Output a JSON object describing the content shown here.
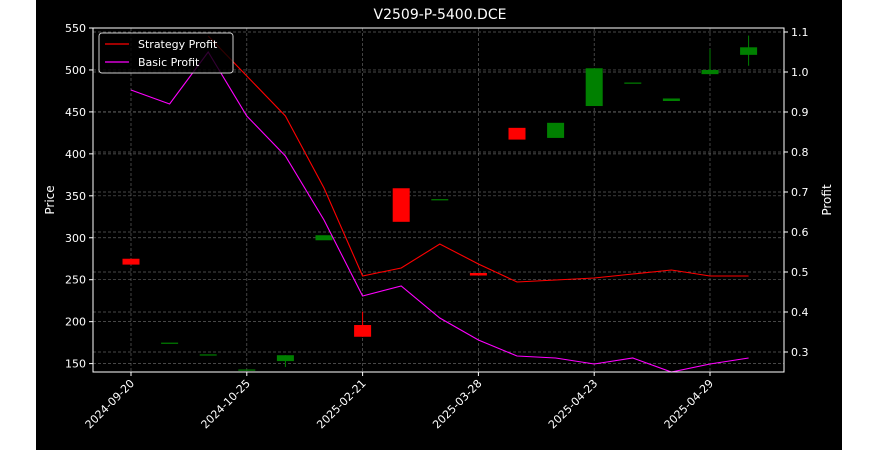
{
  "chart_data": {
    "type": "candlestick+line",
    "title": "V2509-P-5400.DCE",
    "ylabel_left": "Price",
    "ylabel_right": "Profit",
    "ylim_left": [
      140,
      550
    ],
    "ylim_right": [
      0.25,
      1.11
    ],
    "left_ticks": [
      150,
      200,
      250,
      300,
      350,
      400,
      450,
      500,
      550
    ],
    "right_ticks": [
      0.3,
      0.4,
      0.5,
      0.6,
      0.7,
      0.8,
      0.9,
      1.0,
      1.1
    ],
    "x_tick_labels": [
      {
        "index": 0,
        "label": "2024-09-20"
      },
      {
        "index": 3,
        "label": "2024-10-25"
      },
      {
        "index": 6,
        "label": "2025-02-21"
      },
      {
        "index": 9,
        "label": "2025-03-28"
      },
      {
        "index": 12,
        "label": "2025-04-23"
      },
      {
        "index": 15,
        "label": "2025-04-29"
      }
    ],
    "grid": true,
    "legend_position": "top-left",
    "colors": {
      "up": "#008000",
      "down": "#ff0000",
      "strategy": "#ff0000",
      "basic": "#ff00ff"
    },
    "candles": [
      {
        "i": 0,
        "open": 275,
        "close": 268,
        "high": 275,
        "low": 268
      },
      {
        "i": 1,
        "open": 175,
        "close": 175,
        "high": 175,
        "low": 175
      },
      {
        "i": 2,
        "open": 161,
        "close": 161,
        "high": 161,
        "low": 161
      },
      {
        "i": 3,
        "open": 143,
        "close": 143,
        "high": 143,
        "low": 143
      },
      {
        "i": 4,
        "open": 153,
        "close": 160,
        "high": 160,
        "low": 146
      },
      {
        "i": 5,
        "open": 297,
        "close": 303,
        "high": 303,
        "low": 297
      },
      {
        "i": 6,
        "open": 196,
        "close": 182,
        "high": 212,
        "low": 182
      },
      {
        "i": 7,
        "open": 359,
        "close": 319,
        "high": 359,
        "low": 319
      },
      {
        "i": 8,
        "open": 346,
        "close": 346,
        "high": 346,
        "low": 346
      },
      {
        "i": 9,
        "open": 258,
        "close": 255,
        "high": 258,
        "low": 255
      },
      {
        "i": 10,
        "open": 431,
        "close": 417,
        "high": 431,
        "low": 417
      },
      {
        "i": 11,
        "open": 419,
        "close": 437,
        "high": 437,
        "low": 419
      },
      {
        "i": 12,
        "open": 457,
        "close": 502,
        "high": 502,
        "low": 457
      },
      {
        "i": 13,
        "open": 485,
        "close": 485,
        "high": 485,
        "low": 485
      },
      {
        "i": 14,
        "open": 463,
        "close": 466,
        "high": 466,
        "low": 463
      },
      {
        "i": 15,
        "open": 495,
        "close": 500,
        "high": 525,
        "low": 495
      },
      {
        "i": 16,
        "open": 518,
        "close": 527,
        "high": 541,
        "low": 505
      }
    ],
    "series": [
      {
        "name": "Strategy Profit",
        "axis": "right",
        "values": [
          null,
          null,
          1.09,
          0.99,
          0.89,
          0.71,
          0.49,
          0.51,
          0.57,
          0.52,
          0.475,
          0.48,
          0.485,
          0.495,
          0.505,
          0.49,
          0.49
        ]
      },
      {
        "name": "Basic Profit",
        "axis": "right",
        "values": [
          0.955,
          0.92,
          1.05,
          0.89,
          0.79,
          0.63,
          0.44,
          0.465,
          0.385,
          0.33,
          0.29,
          0.285,
          0.27,
          0.285,
          0.25,
          0.27,
          0.285
        ]
      }
    ]
  }
}
